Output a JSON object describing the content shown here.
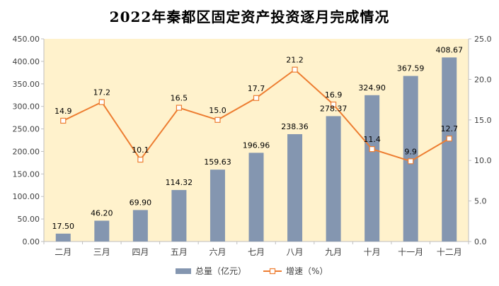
{
  "chart_data": {
    "type": "bar",
    "title": "2022年秦都区固定资产投资逐月完成情况",
    "categories": [
      "二月",
      "三月",
      "四月",
      "五月",
      "六月",
      "七月",
      "八月",
      "九月",
      "十月",
      "十一月",
      "十二月"
    ],
    "series": [
      {
        "name": "总量（亿元）",
        "type": "bar",
        "axis": "left",
        "color": "#8496B0",
        "values": [
          17.5,
          46.2,
          69.9,
          114.32,
          159.63,
          196.96,
          238.36,
          278.37,
          324.9,
          367.59,
          408.67
        ],
        "labels": [
          "17.50",
          "46.20",
          "69.90",
          "114.32",
          "159.63",
          "196.96",
          "238.36",
          "278.37",
          "324.90",
          "367.59",
          "408.67"
        ]
      },
      {
        "name": "增速（%）",
        "type": "line",
        "axis": "right",
        "color": "#ED7D31",
        "values": [
          14.9,
          17.2,
          10.1,
          16.5,
          15.0,
          17.7,
          21.2,
          16.9,
          11.4,
          9.9,
          12.7
        ],
        "labels": [
          "14.9",
          "17.2",
          "10.1",
          "16.5",
          "15.0",
          "17.7",
          "21.2",
          "16.9",
          "11.4",
          "9.9",
          "12.7"
        ]
      }
    ],
    "y_left": {
      "min": 0,
      "max": 450,
      "step": 50,
      "tick_labels": [
        "0.00",
        "50.00",
        "100.00",
        "150.00",
        "200.00",
        "250.00",
        "300.00",
        "350.00",
        "400.00",
        "450.00"
      ]
    },
    "y_right": {
      "min": 0,
      "max": 25,
      "step": 5,
      "tick_labels": [
        "0.0",
        "5.0",
        "10.0",
        "15.0",
        "20.0",
        "25.0"
      ]
    },
    "grid": false,
    "legend_position": "bottom",
    "plot_background": "#FFF2CC"
  }
}
